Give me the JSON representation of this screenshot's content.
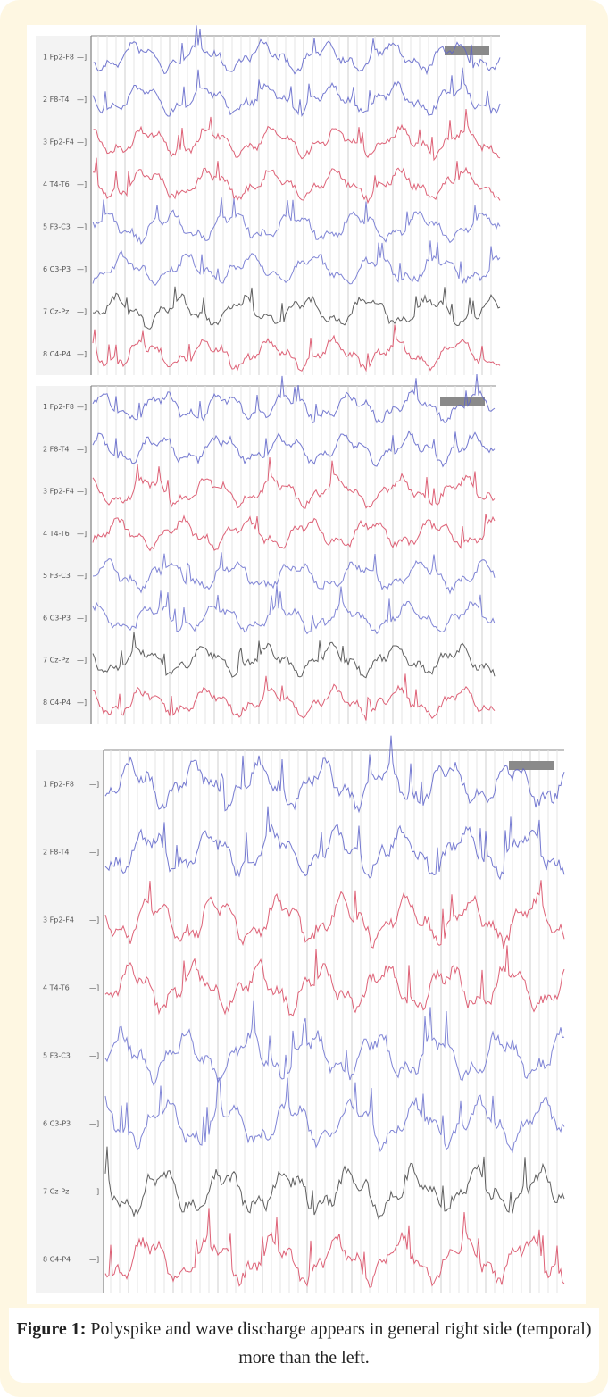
{
  "figure": {
    "caption_label": "Figure 1:",
    "caption_text": "Polyspike and wave discharge appears in general right side (temporal) more than the left.",
    "channels": [
      "1 Fp2-F8",
      "2 F8-T4",
      "3 Fp2-F4",
      "4 T4-T6",
      "5 F3-C3",
      "6 C3-P3",
      "7 Cz-Pz",
      "8 C4-P4"
    ]
  }
}
